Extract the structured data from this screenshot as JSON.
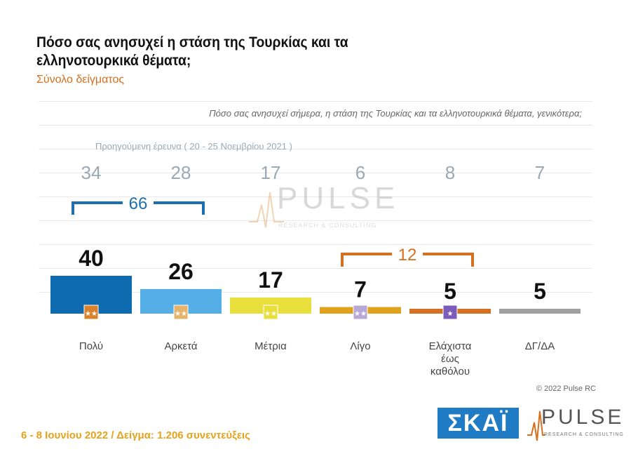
{
  "header": {
    "title": "Πόσο σας ανησυχεί η στάση της Τουρκίας και τα ελληνοτουρκικά θέματα;",
    "subtitle": "Σύνολο δείγματος"
  },
  "question": "Πόσο σας ανησυχεί σήμερα, η στάση της Τουρκίας και τα ελληνοτουρκικά θέματα, γενικότερα;",
  "previous_survey_label": "Προηγούμενη έρευνα  ( 20 - 25 Νοεμβρίου  2021 )",
  "chart_data": {
    "type": "bar",
    "categories": [
      "Πολύ",
      "Αρκετά",
      "Μέτρια",
      "Λίγο",
      "Ελάχιστα έως καθόλου",
      "ΔΓ/ΔΑ"
    ],
    "category_lines": [
      [
        "Πολύ"
      ],
      [
        "Αρκετά"
      ],
      [
        "Μέτρια"
      ],
      [
        "Λίγο"
      ],
      [
        "Ελάχιστα",
        "έως",
        "καθόλου"
      ],
      [
        "ΔΓ/ΔΑ"
      ]
    ],
    "series": [
      {
        "name": "",
        "values": [
          40,
          26,
          17,
          7,
          5,
          5
        ]
      },
      {
        "name": "Προηγούμενη έρευνα  ( 20 - 25 Νοεμβρίου  2021 )",
        "values": [
          34,
          28,
          17,
          6,
          8,
          7
        ]
      }
    ],
    "colors": [
      "#0e6bb0",
      "#56aee6",
      "#e8df3c",
      "#e0a21d",
      "#d4701f",
      "#a0a0a0"
    ],
    "brackets": [
      {
        "label": "66",
        "from": 0,
        "to": 1,
        "color": "#1c6fb0",
        "position": "above previous values"
      },
      {
        "label": "12",
        "from": 3,
        "to": 4,
        "color": "#d4701f",
        "position": "above current values"
      }
    ],
    "icons": [
      "stars-icon",
      "stars-icon",
      "stars-icon",
      "stars-icon",
      "star-icon",
      ""
    ],
    "ylim": [
      0,
      100
    ]
  },
  "copyright": "© 2022 Pulse RC",
  "footer": "6 - 8  Ιουνίου  2022  /  Δείγμα:  1.206 συνεντεύξεις",
  "logos": {
    "skai": "ΣΚΑΪ",
    "pulse": "PULSE",
    "pulse_tag": "RESEARCH & CONSULTING"
  },
  "watermark": {
    "word": "PULSE",
    "tag": "RESEARCH & CONSULTING"
  }
}
